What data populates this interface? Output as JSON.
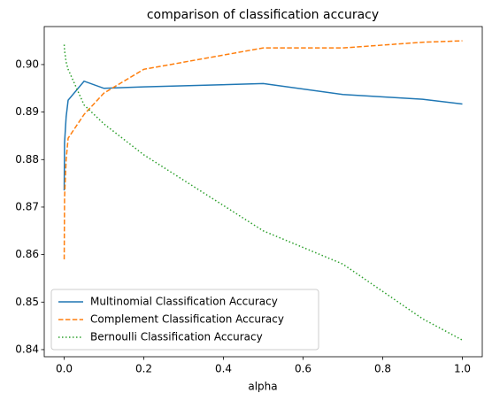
{
  "chart_data": {
    "type": "line",
    "title": "comparison of classification accuracy",
    "x_label": "alpha",
    "x": [
      0.0001,
      0.001,
      0.005,
      0.01,
      0.05,
      0.1,
      0.2,
      0.5,
      0.7,
      0.9,
      1.0
    ],
    "series": [
      {
        "name": "Multinomial Classification Accuracy",
        "color": "#1f77b4",
        "dash": "solid",
        "values": [
          0.8735,
          0.8835,
          0.889,
          0.8925,
          0.8965,
          0.895,
          0.8953,
          0.896,
          0.8937,
          0.8927,
          0.8917
        ]
      },
      {
        "name": "Complement Classification Accuracy",
        "color": "#ff7f0e",
        "dash": "dashed",
        "values": [
          0.859,
          0.872,
          0.88,
          0.8845,
          0.8895,
          0.894,
          0.899,
          0.9035,
          0.9035,
          0.9047,
          0.905
        ]
      },
      {
        "name": "Bernoulli Classification Accuracy",
        "color": "#2ca02c",
        "dash": "dotted",
        "values": [
          0.9042,
          0.903,
          0.9005,
          0.899,
          0.8915,
          0.8875,
          0.881,
          0.865,
          0.858,
          0.8465,
          0.842
        ]
      }
    ],
    "xlim": [
      -0.05,
      1.05
    ],
    "xticks": [
      {
        "value": 0.0,
        "label": "0.0"
      },
      0.2,
      0.4,
      0.6,
      0.8,
      {
        "value": 1.0,
        "label": "1.0"
      }
    ],
    "ylim": [
      0.8385,
      0.908
    ],
    "yticks": [
      0.84,
      0.85,
      0.86,
      0.87,
      0.88,
      0.89,
      {
        "value": 0.9,
        "label": "0.90"
      }
    ],
    "legend": "lower left",
    "grid": false
  }
}
